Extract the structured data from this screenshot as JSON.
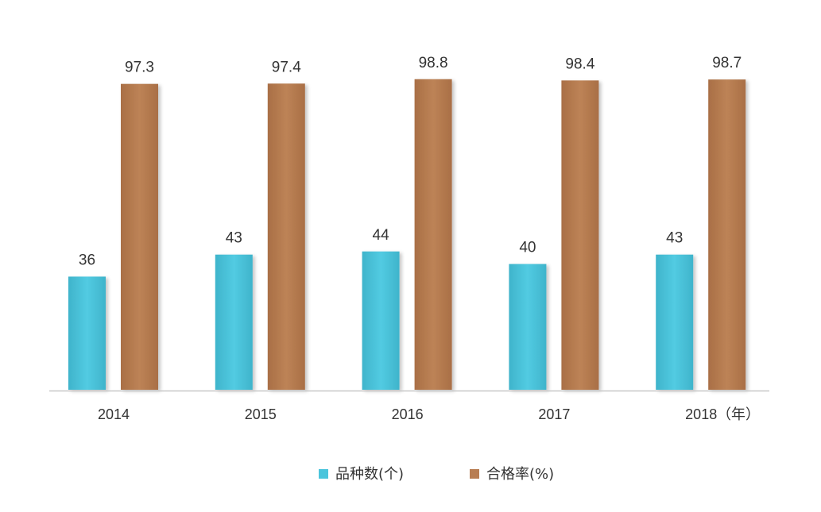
{
  "chart_data": {
    "type": "bar",
    "categories": [
      "2014",
      "2015",
      "2016",
      "2017",
      "2018"
    ],
    "x_unit": "（年）",
    "series": [
      {
        "name": "品种数(个)",
        "color": "#4bc5dc",
        "values": [
          36,
          43,
          44,
          40,
          43
        ]
      },
      {
        "name": "合格率(%)",
        "color": "#b87d52",
        "values": [
          97.3,
          97.4,
          98.8,
          98.4,
          98.7
        ]
      }
    ],
    "data_labels": [
      [
        "36",
        "43",
        "44",
        "40",
        "43"
      ],
      [
        "97.3",
        "97.4",
        "98.8",
        "98.4",
        "98.7"
      ]
    ],
    "ylim": [
      0,
      100
    ],
    "grid": false,
    "legend_position": "bottom"
  }
}
